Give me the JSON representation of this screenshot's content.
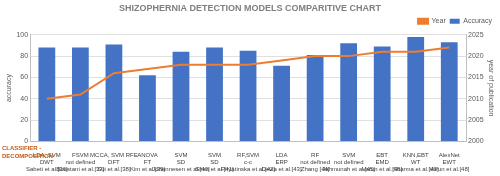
{
  "chart_data": {
    "type": "bar",
    "title": "SHIZOPHERNIA DETECTION MODELS COMPARITIVE CHART",
    "row_label": [
      "CLASSIFIER -",
      "DECOMPOSITION"
    ],
    "categories": [
      [
        "LDA, SVM",
        "DWT",
        "Sabeti et al.[36]"
      ],
      [
        "FSVM",
        "not defined",
        "Boostani et al.[37]"
      ],
      [
        "MCCA, SVM RFE",
        "DFT",
        "Sui et al.[38]"
      ],
      [
        "ANOVA",
        "FT",
        "Kim et al.[39]"
      ],
      [
        "SVM",
        "SD",
        "Johannesen et al.[40]"
      ],
      [
        "SVM",
        "SD",
        "Shim et al.[41]"
      ],
      [
        "RF,SVM",
        "c-c",
        "Piryatinska et al.[42]"
      ],
      [
        "LDA",
        "ERP",
        "Devia et al.[43]"
      ],
      [
        "RF",
        "not defined",
        "Zhang [44]"
      ],
      [
        "SVM",
        "not defined",
        "Jahmunah et al.[45]"
      ],
      [
        "EBT",
        "EMD",
        "Varun et al.[46]"
      ],
      [
        "KNN,EBT",
        "WT",
        "Sharma et al.[47]"
      ],
      [
        "AlexNet",
        "EWT",
        "Varun et al.[48]"
      ]
    ],
    "series": [
      {
        "name": "Accuracy",
        "type": "bar",
        "color": "#4472c4",
        "values": [
          88,
          88,
          91,
          62,
          84,
          88,
          85,
          71,
          81,
          92,
          89,
          98,
          93
        ]
      },
      {
        "name": "Year",
        "type": "line",
        "color": "#ed7d31",
        "axis": "y2",
        "values": [
          2010,
          2011,
          2016,
          2017,
          2018,
          2018,
          2018,
          2019,
          2020,
          2020,
          2021,
          2021,
          2022
        ]
      }
    ],
    "y_label": "accuracy",
    "y2_label": "year of publication",
    "ylim": [
      0,
      100
    ],
    "yticks": [
      0,
      20,
      40,
      60,
      80,
      100
    ],
    "y2lim": [
      2000,
      2025
    ],
    "y2ticks": [
      2000,
      2005,
      2010,
      2015,
      2020,
      2025
    ],
    "grid": true,
    "legend": "top right"
  }
}
